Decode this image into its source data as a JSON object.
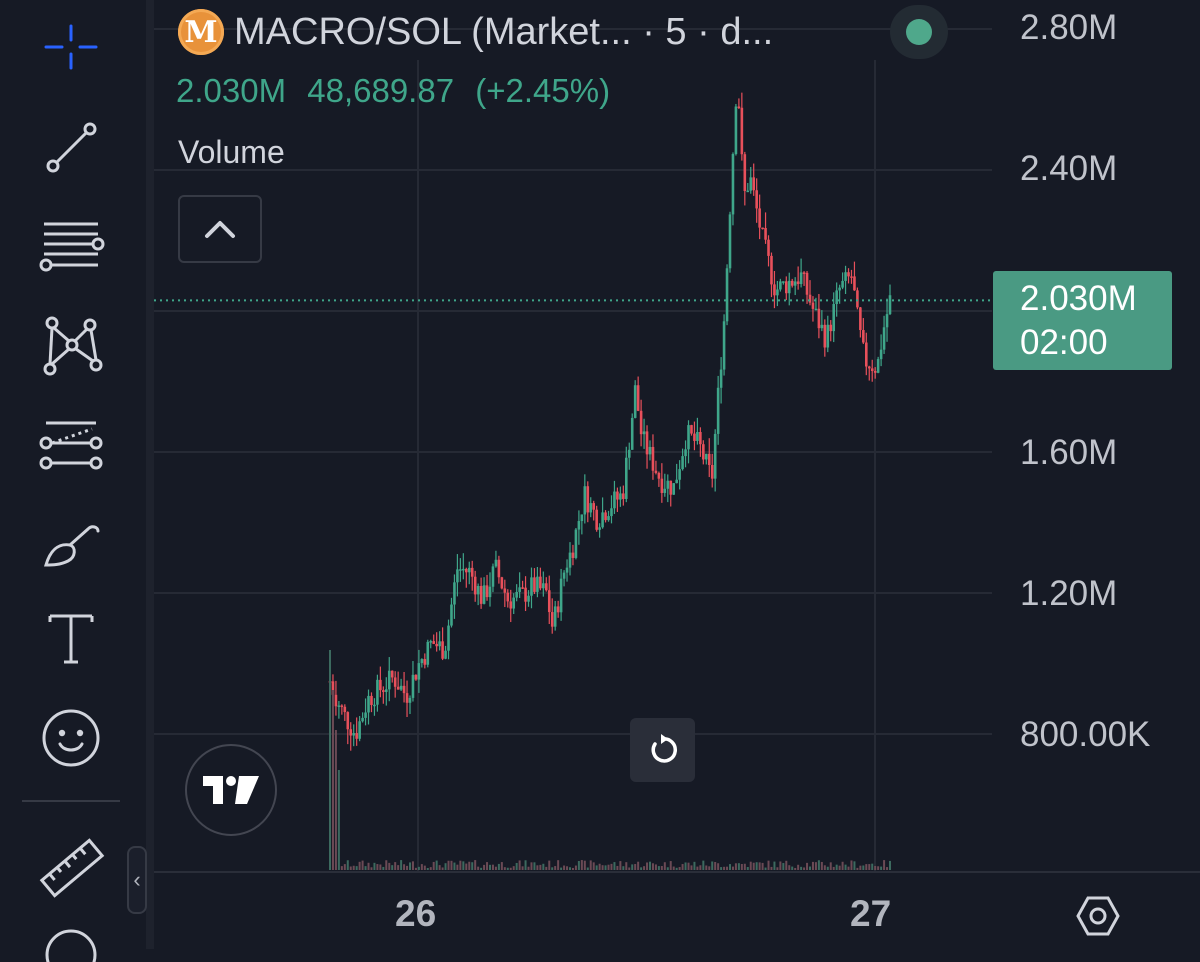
{
  "header": {
    "symbol_title": "MACRO/SOL (Market...",
    "interval": "· 5 · d...",
    "coin_logo_letter": "M"
  },
  "ohlc": {
    "last_price": "2.030M",
    "change_abs": "48,689.87",
    "change_pct": "(+2.45%)"
  },
  "volume_label": "Volume",
  "y_axis": {
    "labels": [
      "2.80M",
      "2.40M",
      "1.60M",
      "1.20M",
      "800.00K"
    ],
    "current_price": "2.030M",
    "countdown": "02:00"
  },
  "x_axis": {
    "labels": [
      "26",
      "27"
    ]
  },
  "colors": {
    "up": "#3fa68a",
    "down": "#e8505b",
    "background": "#161a25",
    "price_tag": "#4a9a83"
  },
  "icons": {
    "toolbar": [
      "crosshair-icon",
      "trend-line-icon",
      "horizontal-lines-icon",
      "pattern-icon",
      "projection-icon",
      "brush-icon",
      "text-icon",
      "emoji-icon",
      "ruler-icon"
    ],
    "other": [
      "collapse-chevron-icon",
      "tradingview-logo-icon",
      "reset-chart-icon",
      "settings-hex-icon",
      "live-status-dot-icon"
    ]
  },
  "chart_data": {
    "type": "candlestick",
    "ylim": [
      700000,
      2850000
    ],
    "y_ticks": [
      800000,
      1200000,
      1600000,
      2000000,
      2400000,
      2800000
    ],
    "x_ticks": [
      "26",
      "27"
    ],
    "current_price": 2030000,
    "price_path": [
      [
        0,
        950000
      ],
      [
        0.02,
        860000
      ],
      [
        0.04,
        800000
      ],
      [
        0.06,
        900000
      ],
      [
        0.08,
        930000
      ],
      [
        0.1,
        960000
      ],
      [
        0.12,
        910000
      ],
      [
        0.14,
        1000000
      ],
      [
        0.16,
        1060000
      ],
      [
        0.18,
        1040000
      ],
      [
        0.2,
        1270000
      ],
      [
        0.22,
        1260000
      ],
      [
        0.24,
        1180000
      ],
      [
        0.26,
        1270000
      ],
      [
        0.28,
        1180000
      ],
      [
        0.3,
        1190000
      ],
      [
        0.32,
        1220000
      ],
      [
        0.34,
        1200000
      ],
      [
        0.35,
        1100000
      ],
      [
        0.37,
        1280000
      ],
      [
        0.38,
        1320000
      ],
      [
        0.4,
        1480000
      ],
      [
        0.42,
        1410000
      ],
      [
        0.44,
        1450000
      ],
      [
        0.46,
        1480000
      ],
      [
        0.48,
        1780000
      ],
      [
        0.49,
        1640000
      ],
      [
        0.5,
        1600000
      ],
      [
        0.52,
        1520000
      ],
      [
        0.54,
        1500000
      ],
      [
        0.56,
        1650000
      ],
      [
        0.58,
        1620000
      ],
      [
        0.6,
        1520000
      ],
      [
        0.61,
        1760000
      ],
      [
        0.62,
        1990000
      ],
      [
        0.63,
        2350000
      ],
      [
        0.64,
        2680000
      ],
      [
        0.65,
        2320000
      ],
      [
        0.66,
        2380000
      ],
      [
        0.68,
        2200000
      ],
      [
        0.7,
        2060000
      ],
      [
        0.72,
        2080000
      ],
      [
        0.74,
        2100000
      ],
      [
        0.76,
        2000000
      ],
      [
        0.78,
        1920000
      ],
      [
        0.8,
        2060000
      ],
      [
        0.82,
        2100000
      ],
      [
        0.83,
        1960000
      ],
      [
        0.84,
        1860000
      ],
      [
        0.86,
        1840000
      ],
      [
        0.87,
        1950000
      ],
      [
        0.88,
        2030000
      ]
    ]
  }
}
